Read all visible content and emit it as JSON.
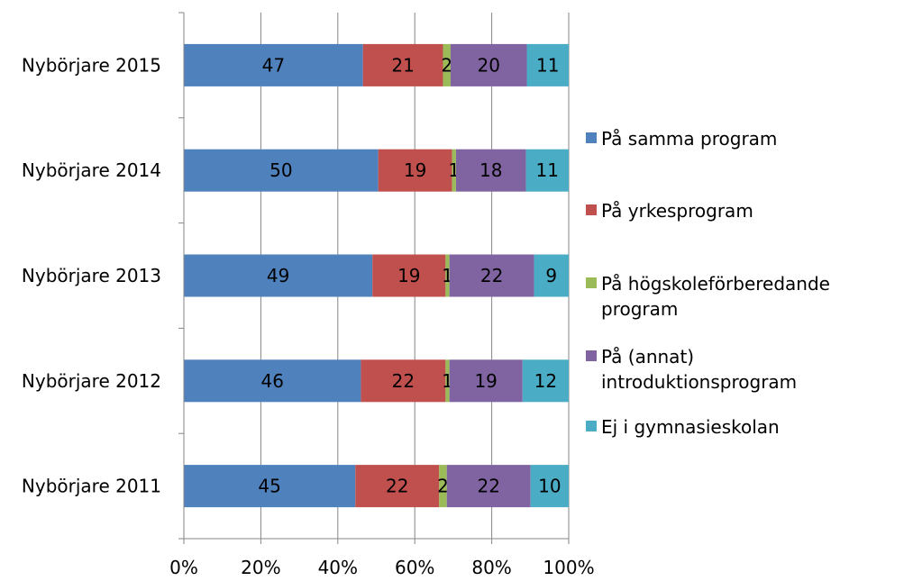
{
  "chart_data": {
    "type": "bar",
    "orientation": "horizontal",
    "stacked": "percent",
    "categories": [
      "Nybörjare 2015",
      "Nybörjare 2014",
      "Nybörjare 2013",
      "Nybörjare 2012",
      "Nybörjare 2011"
    ],
    "series": [
      {
        "name": "På samma program",
        "color": "#4f81bd",
        "values": [
          47,
          50,
          49,
          46,
          45
        ]
      },
      {
        "name": "På yrkesprogram",
        "color": "#c0504d",
        "values": [
          21,
          19,
          19,
          22,
          22
        ]
      },
      {
        "name": "På högskoleförberedande program",
        "color": "#9bbb59",
        "values": [
          2,
          1,
          1,
          1,
          2
        ]
      },
      {
        "name": "På (annat) introduktionsprogram",
        "color": "#8064a2",
        "values": [
          20,
          18,
          22,
          19,
          22
        ]
      },
      {
        "name": "Ej i gymnasieskolan",
        "color": "#4bacc6",
        "values": [
          11,
          11,
          9,
          12,
          10
        ]
      }
    ],
    "legend_lines": [
      [
        "På samma program"
      ],
      [
        "På yrkesprogram"
      ],
      [
        "På högskoleförberedande",
        "program"
      ],
      [
        "På (annat)",
        "introduktionsprogram"
      ],
      [
        "Ej i gymnasieskolan"
      ]
    ],
    "xlim": [
      0,
      100
    ],
    "xticks": [
      "0%",
      "20%",
      "40%",
      "60%",
      "80%",
      "100%"
    ],
    "gridlines": "vertical",
    "legend_position": "right",
    "title": "",
    "xlabel": "",
    "ylabel": ""
  }
}
